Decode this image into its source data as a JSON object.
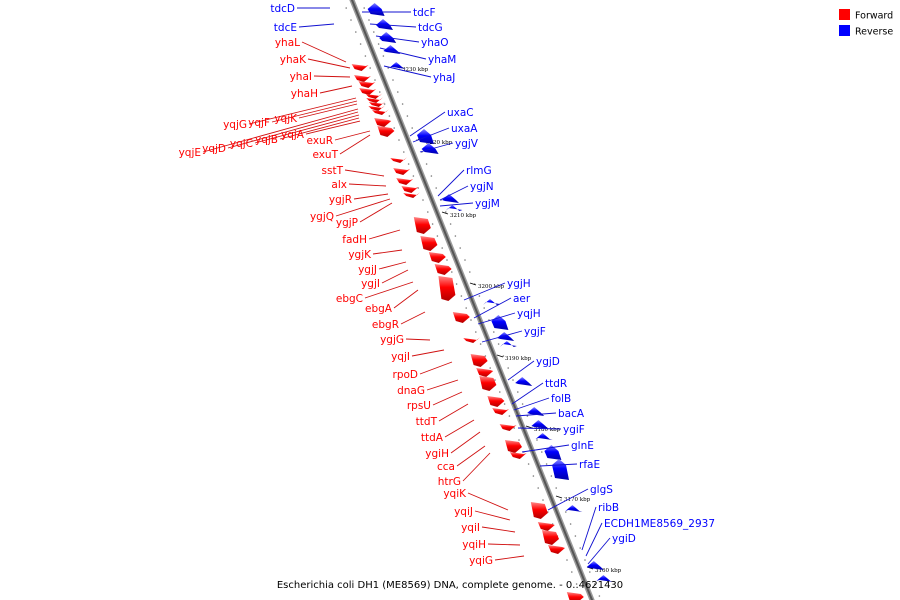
{
  "caption": "Escherichia coli DH1 (ME8569) DNA, complete genome. - 0..4621430",
  "legend": [
    {
      "label": "Forward",
      "color": "#ff0000"
    },
    {
      "label": "Reverse",
      "color": "#0000ff"
    }
  ],
  "colors": {
    "forward": "#ff0000",
    "reverse": "#0000ff",
    "forward_line": "#d01010",
    "reverse_line": "#1010d0",
    "backbone": "#888888"
  },
  "ticks": [
    "3230 kbp",
    "3220 kbp",
    "3210 kbp",
    "3200 kbp",
    "3190 kbp",
    "3180 kbp",
    "3170 kbp",
    "3160 kbp"
  ],
  "forward_genes": [
    "yhaL",
    "yhaK",
    "yhaI",
    "yhaH",
    "yqjG",
    "yqjF",
    "yqjK",
    "yqjE",
    "yqjD",
    "yqjC",
    "yqjB",
    "yqjA",
    "exuR",
    "exuT",
    "sstT",
    "alx",
    "ygjR",
    "ygjQ",
    "ygjP",
    "fadH",
    "ygjK",
    "ygjJ",
    "ygjI",
    "ebgC",
    "ebgA",
    "ebgR",
    "ygjG",
    "yqjI",
    "rpoD",
    "dnaG",
    "rpsU",
    "ttdT",
    "ttdA",
    "ygiH",
    "cca",
    "htrG",
    "yqiK",
    "yqiJ",
    "yqiI",
    "yqiH",
    "yqiG"
  ],
  "reverse_genes": [
    "tdcD",
    "tdcE",
    "tdcF",
    "tdcG",
    "yhaO",
    "yhaM",
    "yhaJ",
    "uxaC",
    "uxaA",
    "ygjV",
    "rlmG",
    "ygjN",
    "ygjM",
    "ygjH",
    "aer",
    "yqjH",
    "ygjF",
    "ygjD",
    "ttdR",
    "folB",
    "bacA",
    "ygiF",
    "glnE",
    "rfaE",
    "glgS",
    "ribB",
    "ECDH1ME8569_2937",
    "ygiD"
  ]
}
